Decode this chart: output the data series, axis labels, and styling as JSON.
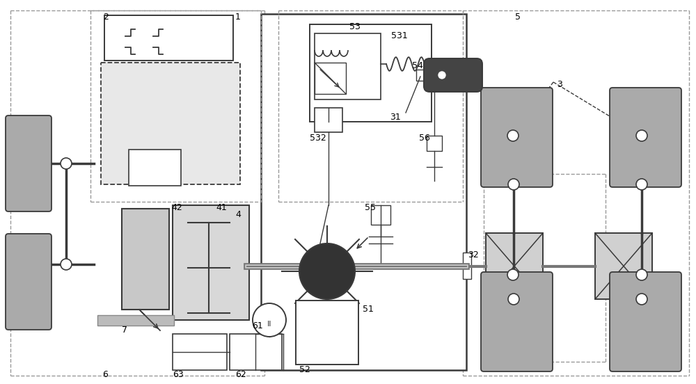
{
  "bg": "#ffffff",
  "lc": "#3a3a3a",
  "dc": "#999999",
  "fl": "#c8c8c8",
  "fw": "#ffffff",
  "fb": "#e0e0e0",
  "fd": "#555555",
  "tire_fc": "#aaaaaa",
  "acc_fc": "#444444",
  "motor_fc": "#333333",
  "shaft_dark": "#666666",
  "shaft_light": "#bbbbbb"
}
